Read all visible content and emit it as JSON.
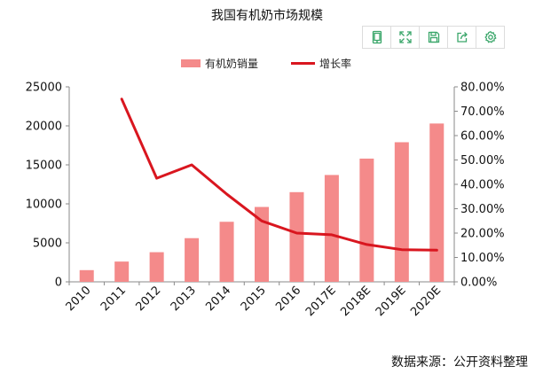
{
  "toolbar": {
    "icons": [
      "tablet-icon",
      "expand-icon",
      "save-icon",
      "share-icon",
      "settings-icon"
    ],
    "icon_color": "#3aa66a"
  },
  "source_text": "数据来源：公开资料整理",
  "chart_data": {
    "type": "bar",
    "title": "我国有机奶市场规模",
    "categories": [
      "2010",
      "2011",
      "2012",
      "2013",
      "2014",
      "2015",
      "2016",
      "2017E",
      "2018E",
      "2019E",
      "2020E"
    ],
    "series": [
      {
        "name": "有机奶销量",
        "type": "bar",
        "axis": "left",
        "color": "#f48a8a",
        "values": [
          1500,
          2600,
          3800,
          5600,
          7700,
          9600,
          11500,
          13700,
          15800,
          17900,
          20300
        ]
      },
      {
        "name": "增长率",
        "type": "line",
        "axis": "right",
        "color": "#d9161f",
        "values": [
          null,
          75.0,
          42.5,
          48.0,
          36.0,
          25.0,
          20.0,
          19.3,
          15.3,
          13.2,
          13.0
        ]
      }
    ],
    "y_left": {
      "range": [
        0,
        25000
      ],
      "ticks": [
        0,
        5000,
        10000,
        15000,
        20000,
        25000
      ],
      "tick_labels": [
        "0",
        "5000",
        "10000",
        "15000",
        "20000",
        "25000"
      ]
    },
    "y_right": {
      "range": [
        0,
        80
      ],
      "ticks": [
        0,
        10,
        20,
        30,
        40,
        50,
        60,
        70,
        80
      ],
      "tick_labels": [
        "0.00%",
        "10.00%",
        "20.00%",
        "30.00%",
        "40.00%",
        "50.00%",
        "60.00%",
        "70.00%",
        "80.00%"
      ]
    },
    "grid": false,
    "legend_position": "top"
  }
}
